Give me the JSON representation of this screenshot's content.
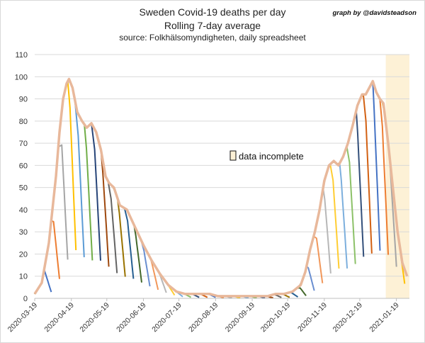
{
  "header": {
    "title": "Sweden Covid-19 deaths per day",
    "subtitle": "Rolling 7-day average",
    "source": "source: Folkhälsomyndigheten, daily spreadsheet",
    "credit": "graph by @davidsteadson"
  },
  "colors": {
    "envelope": "#e8b89b",
    "incomplete_shade": "#fdf1d6",
    "grid": "#d9d9d9",
    "series_palette": [
      "#4472c4",
      "#ed7d31",
      "#a5a5a5",
      "#ffc000",
      "#5b9bd5",
      "#70ad47",
      "#264478",
      "#9e480e",
      "#636363",
      "#997300",
      "#255e91",
      "#43682b",
      "#698ed0",
      "#f1975a",
      "#b7b7b7",
      "#ffcd33",
      "#7cafdd",
      "#8cc168",
      "#334f7a",
      "#d26012"
    ]
  },
  "chart_data": {
    "type": "line",
    "title": "Sweden Covid-19 deaths per day",
    "subtitle": "Rolling 7-day average",
    "xlabel": "",
    "ylabel": "",
    "ylim": [
      0,
      110
    ],
    "yticks": [
      "0",
      "10",
      "20",
      "30",
      "40",
      "50",
      "60",
      "70",
      "80",
      "90",
      "100",
      "110"
    ],
    "xlim": [
      "2020-03-19",
      "2021-01-30"
    ],
    "xticks": [
      "2020-03-19",
      "2020-04-19",
      "2020-05-19",
      "2020-06-19",
      "2020-07-19",
      "2020-08-19",
      "2020-09-19",
      "2020-10-19",
      "2020-11-19",
      "2020-12-19",
      "2021-01-19"
    ],
    "grid": "horizontal",
    "annotation": {
      "label": "data incomplete",
      "shaded_from": "2021-01-10",
      "shaded_to": "2021-01-30"
    },
    "envelope": {
      "x": [
        "2020-03-19",
        "2020-03-25",
        "2020-03-31",
        "2020-04-06",
        "2020-04-09",
        "2020-04-12",
        "2020-04-15",
        "2020-04-17",
        "2020-04-20",
        "2020-04-24",
        "2020-04-28",
        "2020-05-02",
        "2020-05-06",
        "2020-05-10",
        "2020-05-14",
        "2020-05-18",
        "2020-05-21",
        "2020-05-25",
        "2020-05-30",
        "2020-06-05",
        "2020-06-12",
        "2020-06-19",
        "2020-06-26",
        "2020-07-03",
        "2020-07-10",
        "2020-07-17",
        "2020-07-24",
        "2020-07-31",
        "2020-08-07",
        "2020-08-14",
        "2020-08-21",
        "2020-08-28",
        "2020-09-04",
        "2020-09-11",
        "2020-09-18",
        "2020-09-25",
        "2020-10-02",
        "2020-10-09",
        "2020-10-16",
        "2020-10-23",
        "2020-10-30",
        "2020-11-03",
        "2020-11-07",
        "2020-11-11",
        "2020-11-15",
        "2020-11-19",
        "2020-11-23",
        "2020-11-27",
        "2020-12-01",
        "2020-12-05",
        "2020-12-09",
        "2020-12-13",
        "2020-12-17",
        "2020-12-21",
        "2020-12-24",
        "2020-12-27",
        "2020-12-30",
        "2021-01-02",
        "2021-01-05",
        "2021-01-08",
        "2021-01-12",
        "2021-01-16",
        "2021-01-20",
        "2021-01-24",
        "2021-01-28"
      ],
      "y": [
        2,
        7,
        25,
        55,
        75,
        90,
        97,
        99,
        95,
        84,
        80,
        77,
        79,
        75,
        67,
        55,
        52,
        50,
        42,
        40,
        32,
        24,
        17,
        11,
        6,
        3,
        2,
        2,
        2,
        2,
        1,
        1,
        1,
        1,
        1,
        1,
        1,
        2,
        2,
        3,
        6,
        12,
        22,
        30,
        40,
        53,
        60,
        62,
        60,
        64,
        70,
        78,
        87,
        92,
        92,
        95,
        98,
        93,
        90,
        88,
        70,
        50,
        30,
        16,
        10
      ]
    },
    "series_count": 44
  }
}
